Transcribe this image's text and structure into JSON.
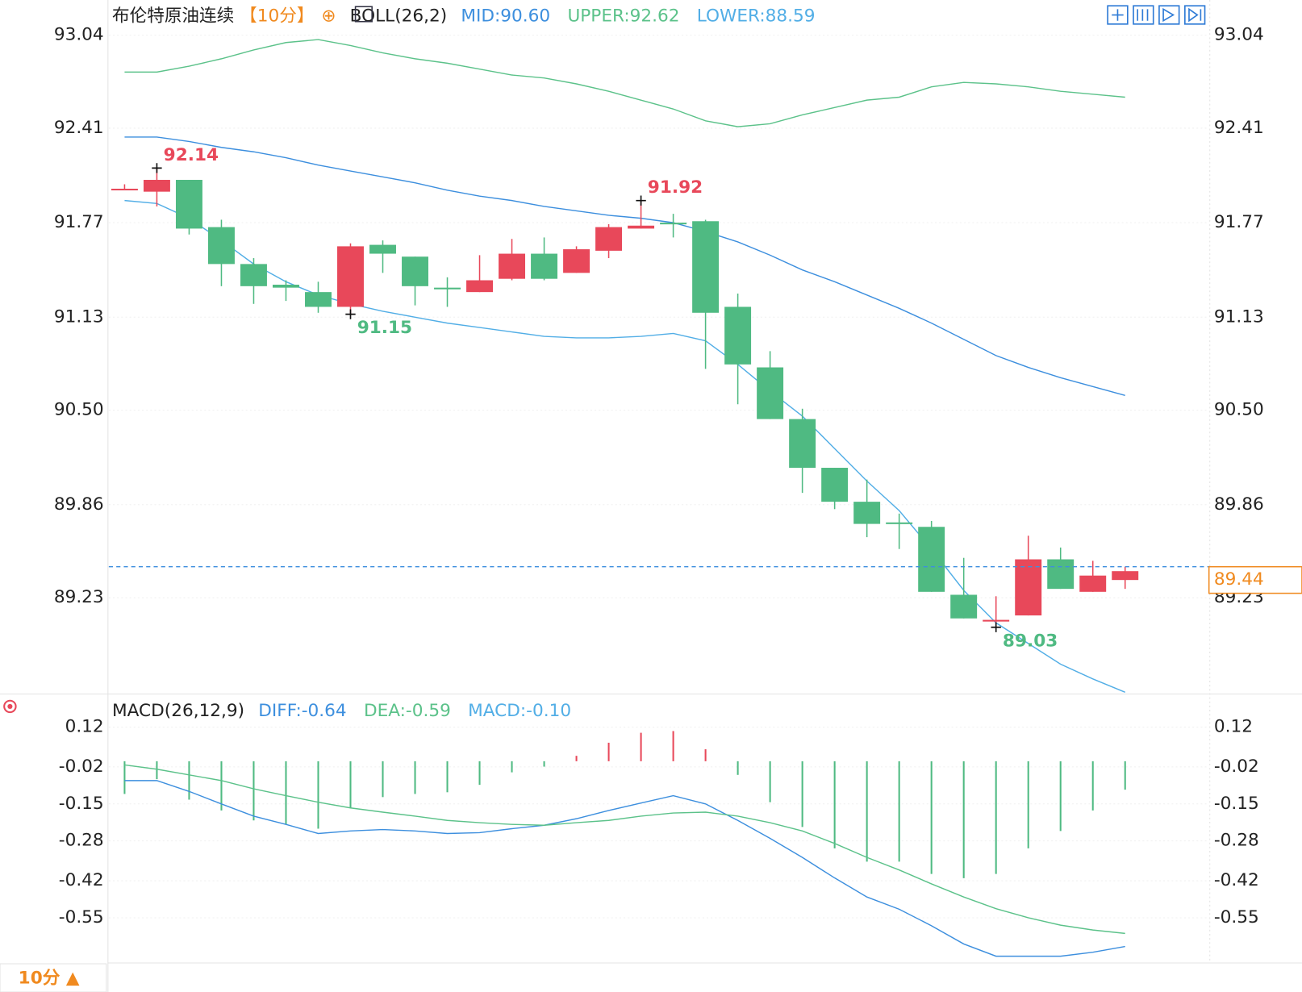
{
  "chart_data": [
    {
      "type": "candlestick",
      "title": "布伦特原油连续",
      "period": "【10分】",
      "indicator": "BOLL(26,2)",
      "up_color": "#e8485a",
      "down_color": "#4fba82",
      "open": [
        92.0,
        91.98,
        92.06,
        91.74,
        91.49,
        91.35,
        91.3,
        91.2,
        91.62,
        91.54,
        91.33,
        91.3,
        91.39,
        91.56,
        91.43,
        91.58,
        91.73,
        91.77,
        91.78,
        91.2,
        90.79,
        90.44,
        90.11,
        89.88,
        89.74,
        89.71,
        89.25,
        89.07,
        89.11,
        89.49,
        89.27,
        89.35
      ],
      "high": [
        92.03,
        92.14,
        92.06,
        91.79,
        91.53,
        91.38,
        91.37,
        91.63,
        91.65,
        91.54,
        91.4,
        91.55,
        91.66,
        91.67,
        91.61,
        91.76,
        91.92,
        91.83,
        91.79,
        91.29,
        90.9,
        90.51,
        90.11,
        90.03,
        89.8,
        89.75,
        89.5,
        89.24,
        89.65,
        89.57,
        89.48,
        89.44
      ],
      "low": [
        91.99,
        91.88,
        91.69,
        91.34,
        91.22,
        91.24,
        91.16,
        91.15,
        91.43,
        91.21,
        91.2,
        91.3,
        91.38,
        91.38,
        91.43,
        91.53,
        91.73,
        91.67,
        90.78,
        90.54,
        90.44,
        89.94,
        89.83,
        89.64,
        89.56,
        89.27,
        89.09,
        89.03,
        89.11,
        89.29,
        89.27,
        89.29
      ],
      "close": [
        92.0,
        92.06,
        91.73,
        91.49,
        91.34,
        91.33,
        91.2,
        91.61,
        91.56,
        91.34,
        91.32,
        91.38,
        91.56,
        91.39,
        91.59,
        91.74,
        91.75,
        91.76,
        91.16,
        90.81,
        90.44,
        90.11,
        89.88,
        89.73,
        89.73,
        89.27,
        89.09,
        89.08,
        89.49,
        89.29,
        89.38,
        89.41
      ],
      "series": [
        {
          "name": "MID:90.60",
          "color": "#3d8fde",
          "values": [
            92.35,
            92.35,
            92.32,
            92.28,
            92.25,
            92.21,
            92.16,
            92.12,
            92.08,
            92.04,
            91.99,
            91.95,
            91.92,
            91.88,
            91.85,
            91.82,
            91.8,
            91.77,
            91.71,
            91.64,
            91.55,
            91.45,
            91.37,
            91.28,
            91.19,
            91.09,
            90.98,
            90.87,
            90.79,
            90.72,
            90.66,
            90.6
          ]
        },
        {
          "name": "UPPER:92.62",
          "color": "#5cc28a",
          "values": [
            92.79,
            92.79,
            92.83,
            92.88,
            92.94,
            92.99,
            93.01,
            92.97,
            92.92,
            92.88,
            92.85,
            92.81,
            92.77,
            92.75,
            92.71,
            92.66,
            92.6,
            92.54,
            92.46,
            92.42,
            92.44,
            92.5,
            92.55,
            92.6,
            92.62,
            92.69,
            92.72,
            92.71,
            92.69,
            92.66,
            92.64,
            92.62
          ]
        },
        {
          "name": "LOWER:88.59",
          "color": "#52aee6",
          "values": [
            91.92,
            91.9,
            91.8,
            91.65,
            91.49,
            91.37,
            91.28,
            91.22,
            91.17,
            91.13,
            91.09,
            91.06,
            91.03,
            91.0,
            90.99,
            90.99,
            91.0,
            91.02,
            90.97,
            90.81,
            90.63,
            90.46,
            90.24,
            90.02,
            89.82,
            89.56,
            89.28,
            89.06,
            88.92,
            88.78,
            88.68,
            88.59
          ]
        }
      ],
      "annotations": [
        92.14,
        91.92,
        91.15,
        89.03
      ],
      "last_price": 89.44,
      "last_price_color": "#f08a1f",
      "last_line_color": "#3d8fde",
      "ylim": [
        88.55,
        93.25
      ],
      "yticks": [
        93.04,
        92.41,
        91.77,
        91.13,
        {
          "value": 90.5,
          "label": "90.50"
        },
        89.86,
        89.23
      ],
      "grid": true
    },
    {
      "type": "macd",
      "title": "MACD(26,12,9)",
      "series": [
        {
          "name": "DIFF:-0.64",
          "color": "#3d8fde",
          "type": "line",
          "values": [
            -0.068,
            -0.068,
            -0.106,
            -0.15,
            -0.193,
            -0.222,
            -0.254,
            -0.245,
            -0.24,
            -0.245,
            -0.254,
            -0.251,
            -0.237,
            -0.225,
            -0.202,
            -0.173,
            -0.147,
            -0.121,
            -0.15,
            -0.208,
            -0.271,
            -0.338,
            -0.41,
            -0.477,
            -0.52,
            -0.578,
            -0.642,
            -0.685,
            -0.685,
            -0.685,
            -0.671,
            -0.651
          ]
        },
        {
          "name": "DEA:-0.59",
          "color": "#5cc28a",
          "type": "line",
          "values": [
            -0.013,
            -0.028,
            -0.048,
            -0.068,
            -0.097,
            -0.121,
            -0.144,
            -0.164,
            -0.179,
            -0.193,
            -0.208,
            -0.216,
            -0.222,
            -0.225,
            -0.216,
            -0.208,
            -0.193,
            -0.182,
            -0.179,
            -0.193,
            -0.216,
            -0.245,
            -0.289,
            -0.338,
            -0.382,
            -0.431,
            -0.477,
            -0.518,
            -0.55,
            -0.576,
            -0.593,
            -0.605
          ]
        },
        {
          "name": "MACD:-0.10",
          "color": "#52aee6",
          "type": "bar",
          "up_color": "#e8485a",
          "down_color": "#4fba82",
          "values": [
            -0.115,
            -0.063,
            -0.135,
            -0.173,
            -0.208,
            -0.222,
            -0.237,
            -0.164,
            -0.126,
            -0.115,
            -0.109,
            -0.083,
            -0.039,
            -0.019,
            0.019,
            0.065,
            0.1,
            0.106,
            0.042,
            -0.048,
            -0.144,
            -0.231,
            -0.306,
            -0.353,
            -0.353,
            -0.396,
            -0.411,
            -0.396,
            -0.306,
            -0.245,
            -0.173,
            -0.1
          ]
        }
      ],
      "ylim": [
        -0.7,
        0.21
      ],
      "yticks": [
        0.12,
        -0.02,
        -0.15,
        -0.28,
        -0.42,
        -0.55
      ],
      "grid": true
    }
  ],
  "footer": {
    "period_button": "10分 ▲"
  }
}
